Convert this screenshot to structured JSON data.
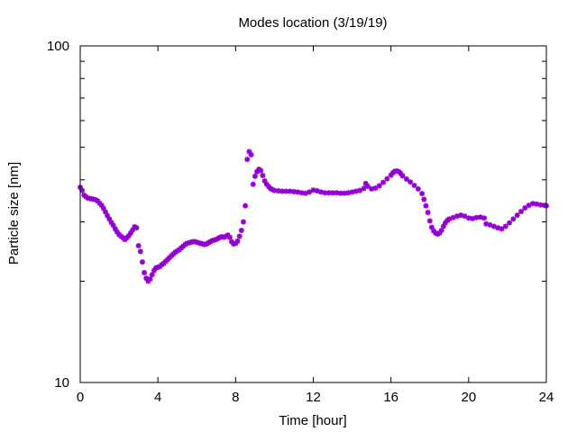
{
  "chart_data": {
    "type": "scatter",
    "title": "Modes location (3/19/19)",
    "xlabel": "Time [hour]",
    "ylabel": "Particle size [nm]",
    "xlim": [
      0,
      24
    ],
    "ylim": [
      10,
      100
    ],
    "yscale": "log",
    "xticks": [
      0,
      4,
      8,
      12,
      16,
      20,
      24
    ],
    "xtick_labels": [
      "0",
      "4",
      "8",
      "12",
      "16",
      "20",
      "24"
    ],
    "yticks": [
      10,
      100
    ],
    "ytick_labels": [
      "10",
      "100"
    ],
    "grid": false,
    "legend": "none",
    "marker": "asterisk",
    "color": "#9400d3",
    "points": [
      [
        0.0,
        38.0
      ],
      [
        0.1,
        37.2
      ],
      [
        0.2,
        36.0
      ],
      [
        0.3,
        35.6
      ],
      [
        0.4,
        35.3
      ],
      [
        0.5,
        35.2
      ],
      [
        0.6,
        35.1
      ],
      [
        0.7,
        35.0
      ],
      [
        0.8,
        34.9
      ],
      [
        0.9,
        34.6
      ],
      [
        1.0,
        34.1
      ],
      [
        1.1,
        33.6
      ],
      [
        1.2,
        32.9
      ],
      [
        1.3,
        32.1
      ],
      [
        1.4,
        31.3
      ],
      [
        1.5,
        30.6
      ],
      [
        1.6,
        29.9
      ],
      [
        1.7,
        29.3
      ],
      [
        1.8,
        28.6
      ],
      [
        1.9,
        28.0
      ],
      [
        2.0,
        27.5
      ],
      [
        2.1,
        27.2
      ],
      [
        2.2,
        26.9
      ],
      [
        2.3,
        26.6
      ],
      [
        2.4,
        26.9
      ],
      [
        2.5,
        27.3
      ],
      [
        2.6,
        27.8
      ],
      [
        2.7,
        28.4
      ],
      [
        2.8,
        29.0
      ],
      [
        2.9,
        28.8
      ],
      [
        3.0,
        25.5
      ],
      [
        3.1,
        24.5
      ],
      [
        3.2,
        22.8
      ],
      [
        3.3,
        21.2
      ],
      [
        3.4,
        20.4
      ],
      [
        3.5,
        20.0
      ],
      [
        3.6,
        20.3
      ],
      [
        3.7,
        20.9
      ],
      [
        3.8,
        21.5
      ],
      [
        3.9,
        21.9
      ],
      [
        4.0,
        22.0
      ],
      [
        4.1,
        22.1
      ],
      [
        4.2,
        22.4
      ],
      [
        4.3,
        22.6
      ],
      [
        4.4,
        22.9
      ],
      [
        4.5,
        23.2
      ],
      [
        4.6,
        23.5
      ],
      [
        4.7,
        23.8
      ],
      [
        4.8,
        24.1
      ],
      [
        4.9,
        24.4
      ],
      [
        5.0,
        24.6
      ],
      [
        5.1,
        24.8
      ],
      [
        5.2,
        25.1
      ],
      [
        5.3,
        25.4
      ],
      [
        5.4,
        25.7
      ],
      [
        5.5,
        25.9
      ],
      [
        5.6,
        26.0
      ],
      [
        5.7,
        26.1
      ],
      [
        5.8,
        26.2
      ],
      [
        5.9,
        26.2
      ],
      [
        6.0,
        26.1
      ],
      [
        6.1,
        26.0
      ],
      [
        6.2,
        25.9
      ],
      [
        6.3,
        25.8
      ],
      [
        6.4,
        25.7
      ],
      [
        6.5,
        25.8
      ],
      [
        6.6,
        26.0
      ],
      [
        6.7,
        26.2
      ],
      [
        6.8,
        26.4
      ],
      [
        6.9,
        26.5
      ],
      [
        7.0,
        26.6
      ],
      [
        7.1,
        26.8
      ],
      [
        7.2,
        27.0
      ],
      [
        7.3,
        27.1
      ],
      [
        7.4,
        27.0
      ],
      [
        7.5,
        27.2
      ],
      [
        7.6,
        27.4
      ],
      [
        7.7,
        27.0
      ],
      [
        7.8,
        26.2
      ],
      [
        7.9,
        25.8
      ],
      [
        8.0,
        25.9
      ],
      [
        8.1,
        26.3
      ],
      [
        8.2,
        27.2
      ],
      [
        8.3,
        28.3
      ],
      [
        8.4,
        30.0
      ],
      [
        8.5,
        33.5
      ],
      [
        8.6,
        46.0
      ],
      [
        8.7,
        48.5
      ],
      [
        8.8,
        47.5
      ],
      [
        8.9,
        38.8
      ],
      [
        9.0,
        41.0
      ],
      [
        9.1,
        42.3
      ],
      [
        9.2,
        43.0
      ],
      [
        9.3,
        42.6
      ],
      [
        9.4,
        41.2
      ],
      [
        9.5,
        39.7
      ],
      [
        9.6,
        38.8
      ],
      [
        9.7,
        38.2
      ],
      [
        9.8,
        37.7
      ],
      [
        9.9,
        37.4
      ],
      [
        10.0,
        37.2
      ],
      [
        10.2,
        37.1
      ],
      [
        10.4,
        37.0
      ],
      [
        10.6,
        37.0
      ],
      [
        10.8,
        37.0
      ],
      [
        11.0,
        36.9
      ],
      [
        11.2,
        36.8
      ],
      [
        11.4,
        36.6
      ],
      [
        11.6,
        36.5
      ],
      [
        11.8,
        36.8
      ],
      [
        12.0,
        37.3
      ],
      [
        12.2,
        37.1
      ],
      [
        12.4,
        36.8
      ],
      [
        12.6,
        36.6
      ],
      [
        12.8,
        36.6
      ],
      [
        13.0,
        36.6
      ],
      [
        13.2,
        36.6
      ],
      [
        13.4,
        36.5
      ],
      [
        13.6,
        36.5
      ],
      [
        13.8,
        36.6
      ],
      [
        14.0,
        36.8
      ],
      [
        14.2,
        37.0
      ],
      [
        14.4,
        37.2
      ],
      [
        14.6,
        37.7
      ],
      [
        14.7,
        39.0
      ],
      [
        14.8,
        38.3
      ],
      [
        15.0,
        37.6
      ],
      [
        15.2,
        37.8
      ],
      [
        15.4,
        38.4
      ],
      [
        15.6,
        39.3
      ],
      [
        15.8,
        40.3
      ],
      [
        16.0,
        41.3
      ],
      [
        16.1,
        42.0
      ],
      [
        16.2,
        42.4
      ],
      [
        16.3,
        42.5
      ],
      [
        16.4,
        42.3
      ],
      [
        16.5,
        41.8
      ],
      [
        16.6,
        41.1
      ],
      [
        16.8,
        40.2
      ],
      [
        17.0,
        39.4
      ],
      [
        17.2,
        38.5
      ],
      [
        17.4,
        37.6
      ],
      [
        17.6,
        36.4
      ],
      [
        17.7,
        35.0
      ],
      [
        17.8,
        33.5
      ],
      [
        17.9,
        32.0
      ],
      [
        18.0,
        30.2
      ],
      [
        18.1,
        28.9
      ],
      [
        18.2,
        28.2
      ],
      [
        18.3,
        27.8
      ],
      [
        18.4,
        27.6
      ],
      [
        18.5,
        27.8
      ],
      [
        18.6,
        28.3
      ],
      [
        18.7,
        29.1
      ],
      [
        18.8,
        29.8
      ],
      [
        18.9,
        30.3
      ],
      [
        19.0,
        30.6
      ],
      [
        19.2,
        30.9
      ],
      [
        19.4,
        31.2
      ],
      [
        19.6,
        31.4
      ],
      [
        19.8,
        31.2
      ],
      [
        20.0,
        30.8
      ],
      [
        20.2,
        30.7
      ],
      [
        20.4,
        30.9
      ],
      [
        20.6,
        31.0
      ],
      [
        20.8,
        30.8
      ],
      [
        20.9,
        29.6
      ],
      [
        21.1,
        29.4
      ],
      [
        21.3,
        29.1
      ],
      [
        21.5,
        28.8
      ],
      [
        21.7,
        28.6
      ],
      [
        21.9,
        29.1
      ],
      [
        22.1,
        29.8
      ],
      [
        22.3,
        30.6
      ],
      [
        22.5,
        31.4
      ],
      [
        22.7,
        32.2
      ],
      [
        22.9,
        33.0
      ],
      [
        23.1,
        33.6
      ],
      [
        23.3,
        34.0
      ],
      [
        23.5,
        33.9
      ],
      [
        23.7,
        33.7
      ],
      [
        23.9,
        33.6
      ],
      [
        24.0,
        33.5
      ]
    ]
  }
}
